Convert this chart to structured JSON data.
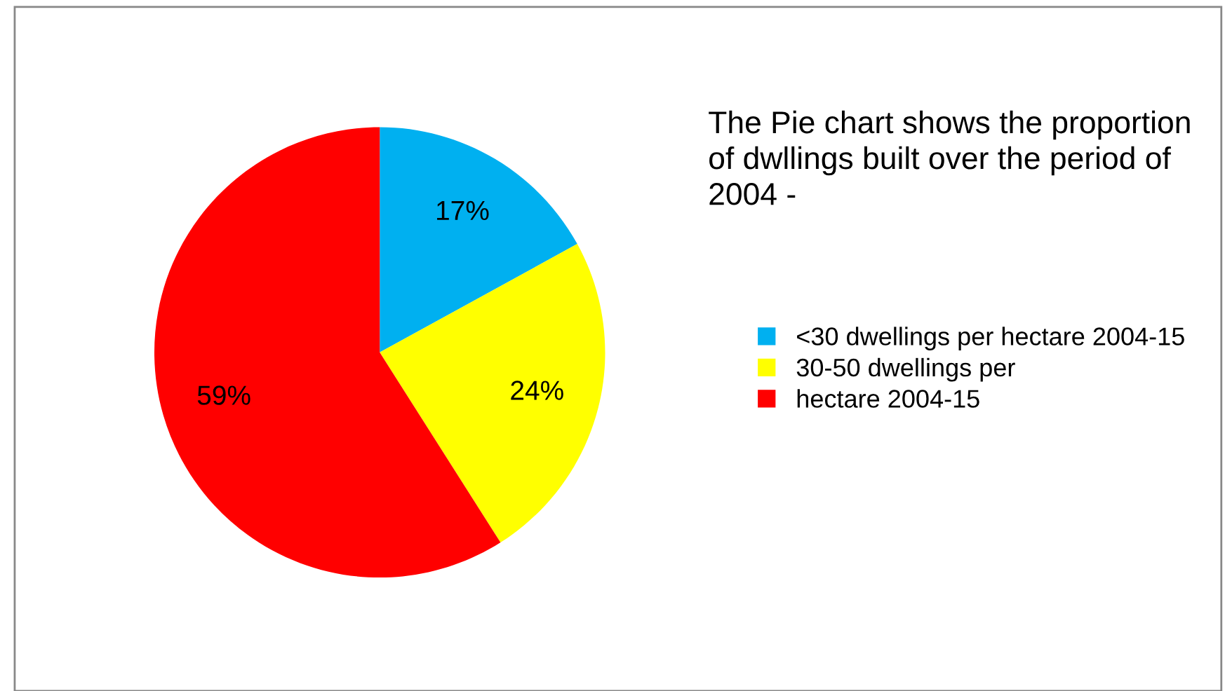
{
  "chart_data": {
    "type": "pie",
    "title": "The Pie chart shows the proportion of dwllings built over the period of 2004 -",
    "categories": [
      "<30 dwellings per hectare 2004-15",
      "30-50 dwellings per",
      "hectare 2004-15"
    ],
    "values": [
      17,
      24,
      59
    ],
    "colors": [
      "#00b0f0",
      "#ffff00",
      "#ff0000"
    ],
    "value_labels": [
      "17%",
      "24%",
      "59%"
    ],
    "legend": "right"
  }
}
